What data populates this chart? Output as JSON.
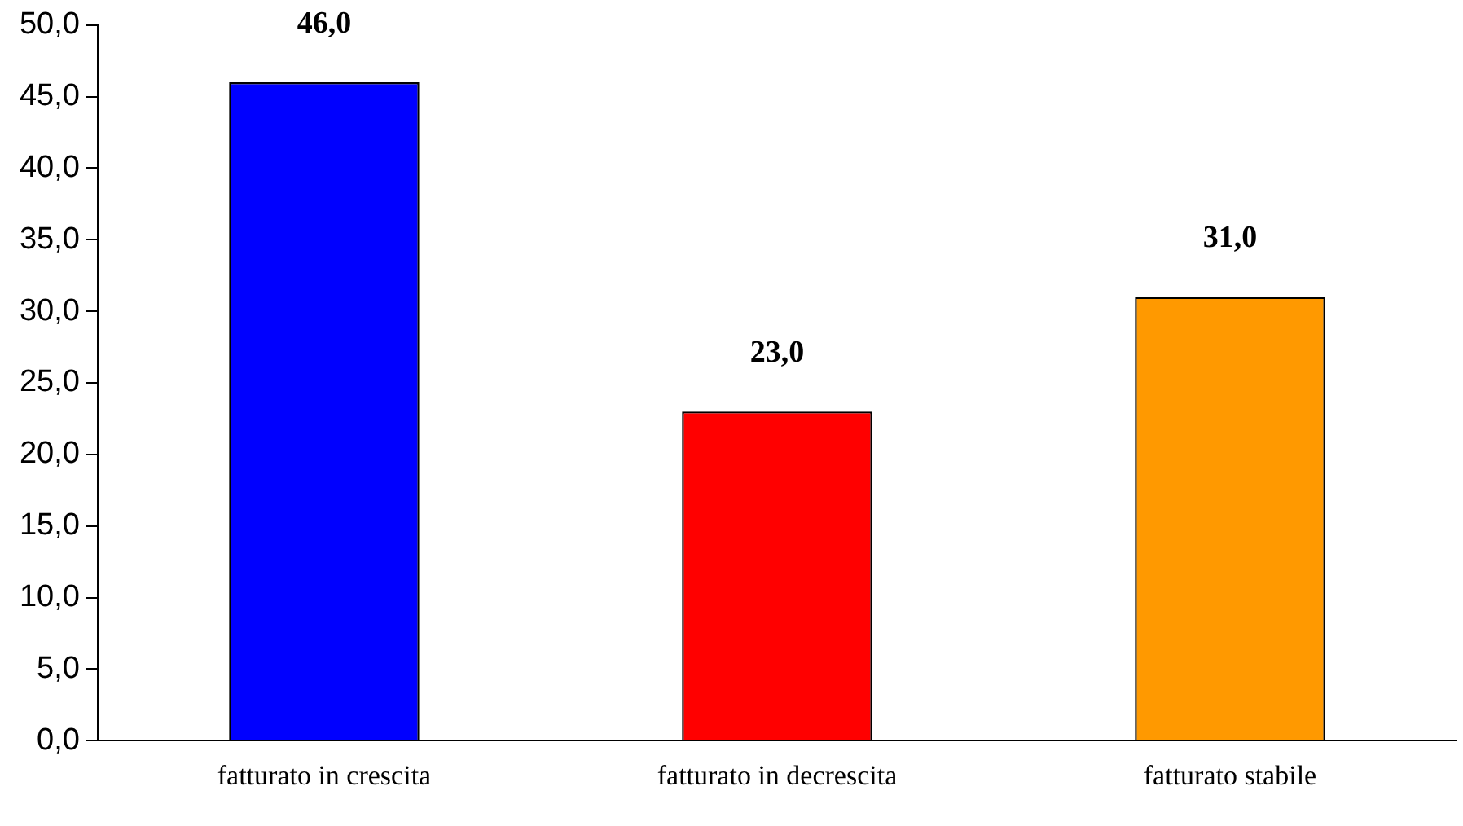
{
  "chart_data": {
    "type": "bar",
    "categories": [
      "fatturato in crescita",
      "fatturato in decrescita",
      "fatturato stabile"
    ],
    "values": [
      46,
      23,
      31
    ],
    "colors": [
      "#0000ff",
      "#ff0000",
      "#ff9900"
    ],
    "value_labels": [
      "46,0",
      "23,0",
      "31,0"
    ],
    "ylim": [
      0,
      50
    ],
    "yticks": [
      {
        "value": 0,
        "label": "0,0"
      },
      {
        "value": 5,
        "label": "5,0"
      },
      {
        "value": 10,
        "label": "10,0"
      },
      {
        "value": 15,
        "label": "15,0"
      },
      {
        "value": 20,
        "label": "20,0"
      },
      {
        "value": 25,
        "label": "25,0"
      },
      {
        "value": 30,
        "label": "30,0"
      },
      {
        "value": 35,
        "label": "35,0"
      },
      {
        "value": 40,
        "label": "40,0"
      },
      {
        "value": 45,
        "label": "45,0"
      },
      {
        "value": 50,
        "label": "50,0"
      }
    ],
    "grid": false,
    "legend": false
  }
}
